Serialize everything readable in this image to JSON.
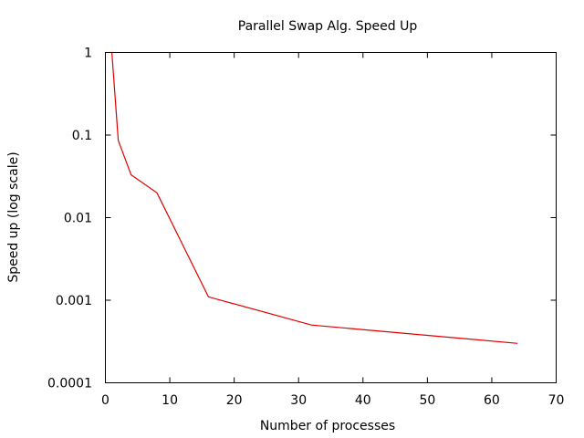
{
  "chart_data": {
    "type": "line",
    "title": "Parallel Swap Alg. Speed Up",
    "xlabel": "Number of processes",
    "ylabel": "Speed up (log scale)",
    "xlim": [
      0,
      70
    ],
    "ylim": [
      0.0001,
      1
    ],
    "x_scale": "linear",
    "y_scale": "log",
    "grid": false,
    "legend": "none",
    "x_ticks": [
      0,
      10,
      20,
      30,
      40,
      50,
      60,
      70
    ],
    "x_tick_labels": [
      "0",
      "10",
      "20",
      "30",
      "40",
      "50",
      "60",
      "70"
    ],
    "y_ticks": [
      0.0001,
      0.001,
      0.01,
      0.1,
      1
    ],
    "y_tick_labels": [
      "0.0001",
      "0.001",
      "0.01",
      "0.1",
      "1"
    ],
    "series": [
      {
        "color": "#e00000",
        "x": [
          1,
          2,
          4,
          8,
          16,
          32,
          64
        ],
        "values": [
          1,
          0.086,
          0.033,
          0.02,
          0.0011,
          0.0005,
          0.0003
        ]
      }
    ]
  }
}
